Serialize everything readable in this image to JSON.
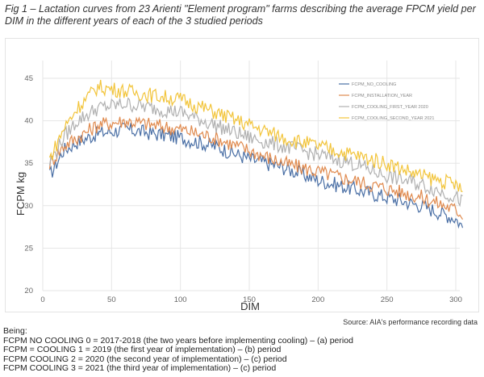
{
  "caption": "Fig 1 – Lactation curves from 23 Arienti \"Element program\" farms describing the average FPCM yield per DIM in the different years of each of the 3 studied periods",
  "source": "Source: AIA's performance recording data",
  "notes": {
    "heading": "Being:",
    "lines": [
      "FCPM NO COOLING 0 = 2017-2018 (the two years before implementing cooling) – (a) period",
      "FCPM = COOLING 1 = 2019 (the first year of implementation) – (b) period",
      "FCPM COOLING 2 = 2020 (the second year of implementation) – (c) period",
      "FCPM COOLING 3 = 2021 (the third year of implementation) – (c) period"
    ]
  },
  "chart_data": {
    "type": "line",
    "title": "",
    "xlabel": "DIM",
    "ylabel": "FCPM kg",
    "xlim": [
      0,
      300
    ],
    "ylim": [
      20,
      45
    ],
    "xticks": [
      "0",
      "50",
      "100",
      "150",
      "200",
      "250",
      "300"
    ],
    "yticks": [
      "20",
      "25",
      "30",
      "35",
      "40",
      "45"
    ],
    "grid": true,
    "legend_position": "top-right",
    "series": [
      {
        "name": "FCPM_NO_COOLING",
        "color": "#4a6fa5",
        "points": [
          [
            5,
            33.5
          ],
          [
            15,
            36.5
          ],
          [
            25,
            37.5
          ],
          [
            40,
            38.5
          ],
          [
            60,
            39
          ],
          [
            80,
            38.5
          ],
          [
            100,
            38
          ],
          [
            125,
            37
          ],
          [
            150,
            35.5
          ],
          [
            175,
            34.5
          ],
          [
            200,
            33
          ],
          [
            225,
            32
          ],
          [
            250,
            31
          ],
          [
            275,
            30
          ],
          [
            300,
            28.5
          ],
          [
            305,
            27.5
          ]
        ]
      },
      {
        "name": "FCPM_INSTALLATION_YEAR",
        "color": "#e08a4e",
        "points": [
          [
            5,
            35
          ],
          [
            15,
            37
          ],
          [
            25,
            38
          ],
          [
            40,
            39.5
          ],
          [
            60,
            40
          ],
          [
            80,
            39.5
          ],
          [
            100,
            39
          ],
          [
            125,
            38
          ],
          [
            150,
            36.5
          ],
          [
            175,
            35
          ],
          [
            200,
            34
          ],
          [
            225,
            33
          ],
          [
            250,
            32
          ],
          [
            275,
            31
          ],
          [
            300,
            29.5
          ],
          [
            305,
            29
          ]
        ]
      },
      {
        "name": "FCPM_COOLING_FIRST_YEAR 2020",
        "color": "#b0b0b0",
        "points": [
          [
            5,
            35
          ],
          [
            15,
            38
          ],
          [
            25,
            40
          ],
          [
            40,
            41.5
          ],
          [
            60,
            42
          ],
          [
            80,
            41.5
          ],
          [
            100,
            41
          ],
          [
            125,
            39.5
          ],
          [
            150,
            38
          ],
          [
            175,
            37
          ],
          [
            200,
            36
          ],
          [
            225,
            35
          ],
          [
            250,
            33.5
          ],
          [
            275,
            32.5
          ],
          [
            300,
            31
          ],
          [
            305,
            30.5
          ]
        ]
      },
      {
        "name": "FCPM_COOLING_SECOND_YEAR 2021",
        "color": "#f2c43a",
        "points": [
          [
            5,
            35.5
          ],
          [
            15,
            39
          ],
          [
            25,
            41.5
          ],
          [
            40,
            44
          ],
          [
            60,
            43.5
          ],
          [
            80,
            43
          ],
          [
            100,
            42.5
          ],
          [
            125,
            41
          ],
          [
            150,
            39.5
          ],
          [
            175,
            38
          ],
          [
            200,
            37
          ],
          [
            225,
            36
          ],
          [
            250,
            35
          ],
          [
            275,
            33.5
          ],
          [
            300,
            32.5
          ],
          [
            305,
            31.5
          ]
        ]
      }
    ]
  }
}
